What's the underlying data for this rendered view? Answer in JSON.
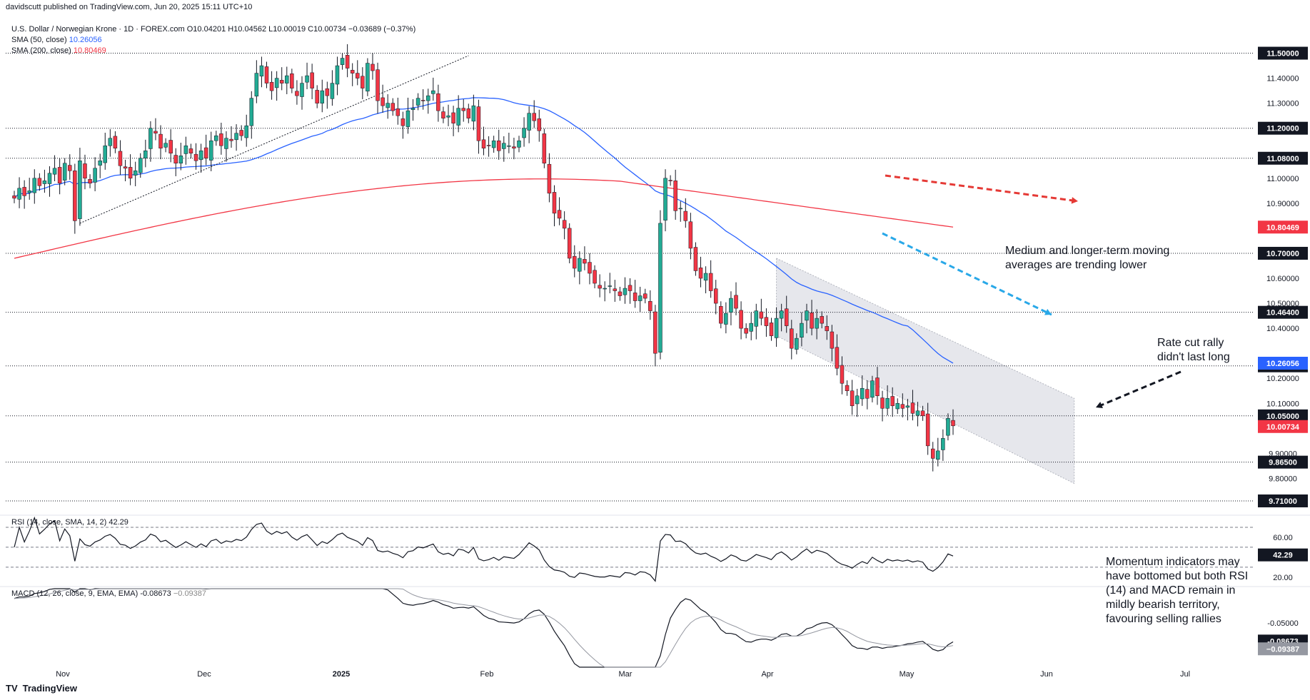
{
  "publisher": "davidscutt published on TradingView.com, Jun 20, 2025 15:11 UTC+10",
  "brand": "TradingView",
  "legend": {
    "symbol": "U.S. Dollar / Norwegian Krone · 1D · FOREX.com",
    "ohlc": "O10.04201 H10.04562 L10.00019 C10.00734 −0.03689 (−0.37%)",
    "sma50_label": "SMA (50, close)",
    "sma50_value": "10.26056",
    "sma200_label": "SMA (200, close)",
    "sma200_value": "10.80469",
    "rsi_label": "RSI (14, close, SMA, 14, 2)",
    "rsi_value": "42.29",
    "macd_label": "MACD (12, 26, close, 9, EMA, EMA)",
    "macd_value": "-0.08673",
    "macd_signal_value": "−0.09387"
  },
  "colors": {
    "up": "#22ab94",
    "down": "#f23645",
    "sma50": "#2962ff",
    "sma200": "#f23645",
    "red_arrow": "#e53935",
    "blue_arrow": "#29a8e8",
    "label_bg": "#131722"
  },
  "chart_data": [
    {
      "type": "candlestick",
      "title": "U.S. Dollar / Norwegian Krone · 1D · FOREX.com",
      "y_range": [
        9.67,
        11.57
      ],
      "x_ticks": [
        "Nov",
        "Dec",
        "2025",
        "Feb",
        "Mar",
        "Apr",
        "May",
        "Jun",
        "Jul"
      ],
      "y_ticks": [
        "11.40000",
        "11.30000",
        "11.00000",
        "10.90000",
        "10.60000",
        "10.50000",
        "10.40000",
        "10.20000",
        "10.10000",
        "9.90000",
        "9.80000"
      ],
      "horizontal_levels": [
        {
          "value": 11.5,
          "label": "11.50000"
        },
        {
          "value": 11.2,
          "label": "11.20000"
        },
        {
          "value": 11.08,
          "label": "11.08000"
        },
        {
          "value": 10.7,
          "label": "10.70000"
        },
        {
          "value": 10.464,
          "label": "10.46400"
        },
        {
          "value": 10.25,
          "label": "10.25000"
        },
        {
          "value": 10.05,
          "label": "10.05000"
        },
        {
          "value": 9.865,
          "label": "9.86500"
        },
        {
          "value": 9.71,
          "label": "9.71000"
        }
      ],
      "price_tags": [
        {
          "value": 10.80469,
          "label": "10.80469",
          "color": "#f23645"
        },
        {
          "value": 10.26056,
          "label": "10.26056",
          "color": "#2962ff"
        },
        {
          "value": 10.00734,
          "label": "10.00734",
          "color": "#f23645"
        }
      ],
      "close": [
        10.92,
        10.96,
        10.93,
        10.95,
        11.0,
        10.97,
        10.99,
        11.02,
        11.04,
        10.98,
        11.06,
        11.03,
        10.83,
        11.07,
        11.0,
        10.98,
        11.04,
        11.07,
        11.13,
        11.16,
        11.12,
        11.05,
        11.04,
        11.0,
        11.03,
        11.08,
        11.11,
        11.2,
        11.18,
        11.12,
        11.14,
        11.1,
        11.06,
        11.09,
        11.13,
        11.1,
        11.07,
        11.11,
        11.08,
        11.15,
        11.17,
        11.13,
        11.16,
        11.15,
        11.18,
        11.17,
        11.21,
        11.32,
        11.42,
        11.45,
        11.38,
        11.35,
        11.4,
        11.38,
        11.41,
        11.36,
        11.33,
        11.38,
        11.41,
        11.36,
        11.3,
        11.35,
        11.33,
        11.38,
        11.45,
        11.48,
        11.44,
        11.42,
        11.4,
        11.36,
        11.46,
        11.43,
        11.31,
        11.29,
        11.3,
        11.27,
        11.25,
        11.21,
        11.27,
        11.28,
        11.32,
        11.31,
        11.33,
        11.35,
        11.27,
        11.24,
        11.25,
        11.22,
        11.28,
        11.27,
        11.24,
        11.29,
        11.15,
        11.12,
        11.13,
        11.15,
        11.11,
        11.14,
        11.13,
        11.12,
        11.15,
        11.2,
        11.26,
        11.23,
        11.19,
        11.06,
        10.94,
        10.86,
        10.84,
        10.8,
        10.68,
        10.64,
        10.68,
        10.66,
        10.62,
        10.58,
        10.56,
        10.56,
        10.57,
        10.55,
        10.53,
        10.56,
        10.55,
        10.51,
        10.53,
        10.52,
        10.47,
        10.3,
        10.82,
        11.0,
        10.99,
        10.87,
        10.88,
        10.83,
        10.72,
        10.63,
        10.6,
        10.62,
        10.55,
        10.5,
        10.42,
        10.46,
        10.52,
        10.48,
        10.4,
        10.38,
        10.42,
        10.47,
        10.44,
        10.41,
        10.37,
        10.44,
        10.47,
        10.41,
        10.32,
        10.36,
        10.42,
        10.47,
        10.4,
        10.44,
        10.42,
        10.39,
        10.32,
        10.24,
        10.18,
        10.15,
        10.09,
        10.13,
        10.16,
        10.12,
        10.19,
        10.13,
        10.08,
        10.12,
        10.09,
        10.1,
        10.08,
        10.09,
        10.06,
        10.07,
        10.05,
        9.93,
        9.88,
        9.91,
        9.96,
        10.04,
        10.01
      ],
      "sma50": {
        "start_index": 0,
        "end_value": 10.26056
      },
      "sma200": {
        "end_value": 10.80469
      },
      "channel": {
        "upper": [
          [
            151,
            10.68
          ],
          [
            210,
            10.12
          ]
        ],
        "lower": [
          [
            151,
            10.37
          ],
          [
            210,
            9.78
          ]
        ]
      }
    },
    {
      "type": "line",
      "name": "RSI (14, close, SMA, 14, 2)",
      "y_range": [
        12,
        80
      ],
      "y_ticks": [
        "60.00",
        "20.00"
      ],
      "levels": [
        70,
        50,
        30
      ],
      "last_value": "42.29"
    },
    {
      "type": "line",
      "name": "MACD (12, 26, close, 9, EMA, EMA)",
      "y_ticks": [
        "-0.05000"
      ],
      "last_macd": "-0.08673",
      "last_signal": "−0.09387"
    }
  ],
  "annotations": {
    "ma_note_line1": "Medium and longer-term moving",
    "ma_note_line2": "averages are trending lower",
    "rally_line1": "Rate cut rally",
    "rally_line2": "didn't last long",
    "momentum_line1": "Momentum indicators may",
    "momentum_line2": "have bottomed but both RSI",
    "momentum_line3": "(14) and MACD remain in",
    "momentum_line4": "mildly bearish territory,",
    "momentum_line5": "favouring selling rallies"
  }
}
